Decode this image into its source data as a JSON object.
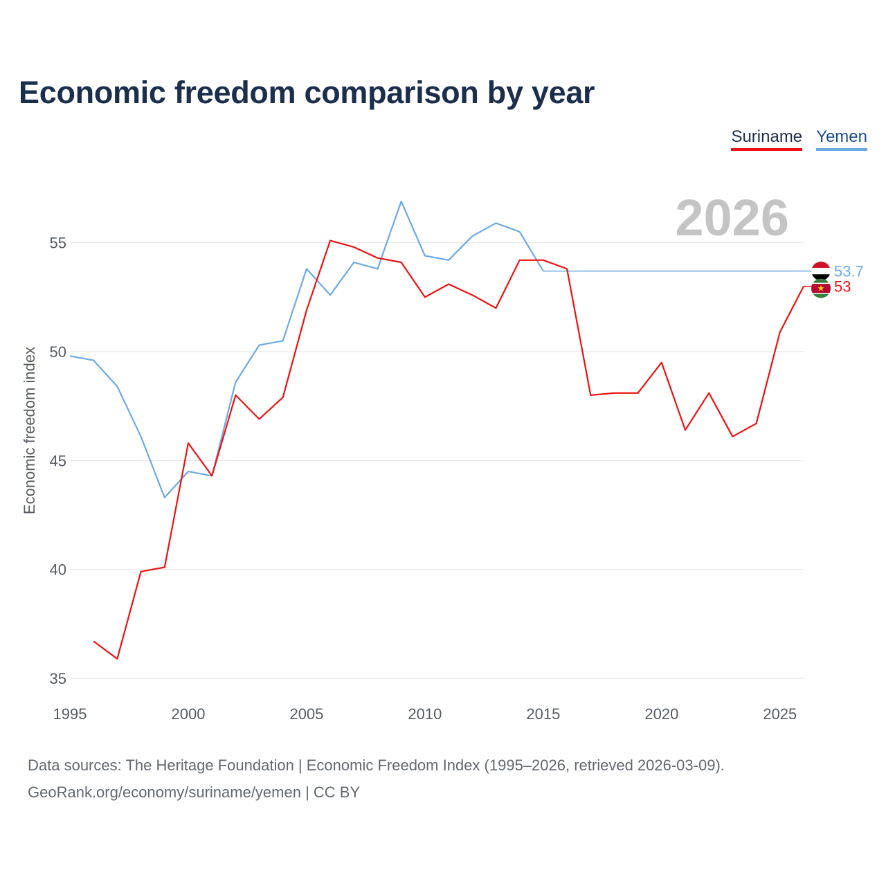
{
  "title": "Economic freedom comparison by year",
  "legend": [
    {
      "name": "Suriname",
      "color": "#ee1111"
    },
    {
      "name": "Yemen",
      "color": "#6aaae4"
    }
  ],
  "year_label": "2026",
  "source": {
    "line1": "Data sources: The Heritage Foundation | Economic Freedom Index (1995–2026, retrieved 2026-03-09).",
    "line2": "GeoRank.org/economy/suriname/yemen | CC BY"
  },
  "chart_data": {
    "type": "line",
    "title": "Economic freedom comparison by year",
    "xlabel": "",
    "ylabel": "Economic freedom index",
    "xlim": [
      1995,
      2026
    ],
    "ylim": [
      35,
      57.5
    ],
    "xticks": [
      1995,
      2000,
      2005,
      2010,
      2015,
      2020,
      2025
    ],
    "yticks": [
      35,
      40,
      45,
      50,
      55
    ],
    "grid": true,
    "legend_position": "top-right",
    "series": [
      {
        "name": "Suriname",
        "color": "#ee1111",
        "end_label": "53",
        "points": [
          [
            1996,
            36.7
          ],
          [
            1997,
            35.9
          ],
          [
            1998,
            39.9
          ],
          [
            1999,
            40.1
          ],
          [
            2000,
            45.8
          ],
          [
            2001,
            44.3
          ],
          [
            2002,
            48.0
          ],
          [
            2003,
            46.9
          ],
          [
            2004,
            47.9
          ],
          [
            2005,
            51.9
          ],
          [
            2006,
            55.1
          ],
          [
            2007,
            54.8
          ],
          [
            2008,
            54.3
          ],
          [
            2009,
            54.1
          ],
          [
            2010,
            52.5
          ],
          [
            2011,
            53.1
          ],
          [
            2012,
            52.6
          ],
          [
            2013,
            52.0
          ],
          [
            2014,
            54.2
          ],
          [
            2015,
            54.2
          ],
          [
            2016,
            53.8
          ],
          [
            2017,
            48.0
          ],
          [
            2018,
            48.1
          ],
          [
            2019,
            48.1
          ],
          [
            2020,
            49.5
          ],
          [
            2021,
            46.4
          ],
          [
            2022,
            48.1
          ],
          [
            2023,
            46.1
          ],
          [
            2024,
            46.7
          ],
          [
            2025,
            50.9
          ],
          [
            2026,
            53.0
          ]
        ]
      },
      {
        "name": "Yemen",
        "color": "#6aaae4",
        "end_label": "53.7",
        "points": [
          [
            1995,
            49.8
          ],
          [
            1996,
            49.6
          ],
          [
            1997,
            48.4
          ],
          [
            1998,
            46.1
          ],
          [
            1999,
            43.3
          ],
          [
            2000,
            44.5
          ],
          [
            2001,
            44.3
          ],
          [
            2002,
            48.6
          ],
          [
            2003,
            50.3
          ],
          [
            2004,
            50.5
          ],
          [
            2005,
            53.8
          ],
          [
            2006,
            52.6
          ],
          [
            2007,
            54.1
          ],
          [
            2008,
            53.8
          ],
          [
            2009,
            56.9
          ],
          [
            2010,
            54.4
          ],
          [
            2011,
            54.2
          ],
          [
            2012,
            55.3
          ],
          [
            2013,
            55.9
          ],
          [
            2014,
            55.5
          ],
          [
            2015,
            53.7
          ]
        ],
        "carried_forward": {
          "from": 2015,
          "to": 2026,
          "value": 53.7
        }
      }
    ]
  }
}
